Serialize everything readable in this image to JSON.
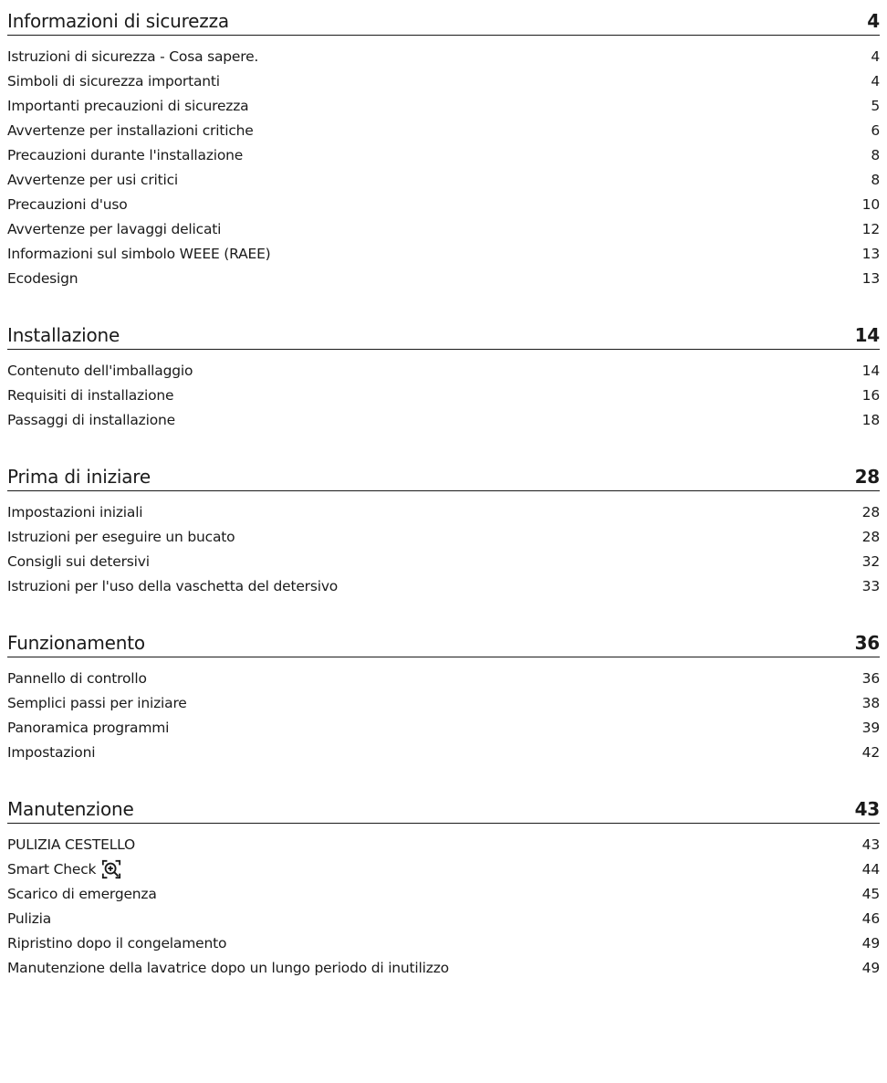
{
  "sections": [
    {
      "title": "Informazioni di sicurezza",
      "page": "4",
      "items": [
        {
          "title": "Istruzioni di sicurezza - Cosa sapere.",
          "page": "4"
        },
        {
          "title": "Simboli di sicurezza importanti",
          "page": "4"
        },
        {
          "title": "Importanti precauzioni di sicurezza",
          "page": "5"
        },
        {
          "title": "Avvertenze per installazioni critiche",
          "page": "6"
        },
        {
          "title": "Precauzioni durante l'installazione",
          "page": "8"
        },
        {
          "title": "Avvertenze per usi critici",
          "page": "8"
        },
        {
          "title": "Precauzioni d'uso",
          "page": "10"
        },
        {
          "title": "Avvertenze per lavaggi delicati",
          "page": "12"
        },
        {
          "title": "Informazioni sul simbolo WEEE (RAEE)",
          "page": "13"
        },
        {
          "title": "Ecodesign",
          "page": "13"
        }
      ]
    },
    {
      "title": "Installazione",
      "page": "14",
      "items": [
        {
          "title": "Contenuto dell'imballaggio",
          "page": "14"
        },
        {
          "title": "Requisiti di installazione",
          "page": "16"
        },
        {
          "title": "Passaggi di installazione",
          "page": "18"
        }
      ]
    },
    {
      "title": "Prima di iniziare",
      "page": "28",
      "items": [
        {
          "title": "Impostazioni iniziali",
          "page": "28"
        },
        {
          "title": "Istruzioni per eseguire un bucato",
          "page": "28"
        },
        {
          "title": "Consigli sui detersivi",
          "page": "32"
        },
        {
          "title": "Istruzioni per l'uso della vaschetta del detersivo",
          "page": "33"
        }
      ]
    },
    {
      "title": "Funzionamento",
      "page": "36",
      "items": [
        {
          "title": "Pannello di controllo",
          "page": "36"
        },
        {
          "title": "Semplici passi per iniziare",
          "page": "38"
        },
        {
          "title": "Panoramica programmi",
          "page": "39"
        },
        {
          "title": "Impostazioni",
          "page": "42"
        }
      ]
    },
    {
      "title": "Manutenzione",
      "page": "43",
      "items": [
        {
          "title": "PULIZIA CESTELLO",
          "page": "43"
        },
        {
          "title": "Smart Check",
          "page": "44",
          "icon": "smart-check-icon"
        },
        {
          "title": "Scarico di emergenza",
          "page": "45"
        },
        {
          "title": "Pulizia",
          "page": "46"
        },
        {
          "title": "Ripristino dopo il congelamento",
          "page": "49"
        },
        {
          "title": "Manutenzione della lavatrice dopo un lungo periodo di inutilizzo",
          "page": "49"
        }
      ]
    }
  ]
}
